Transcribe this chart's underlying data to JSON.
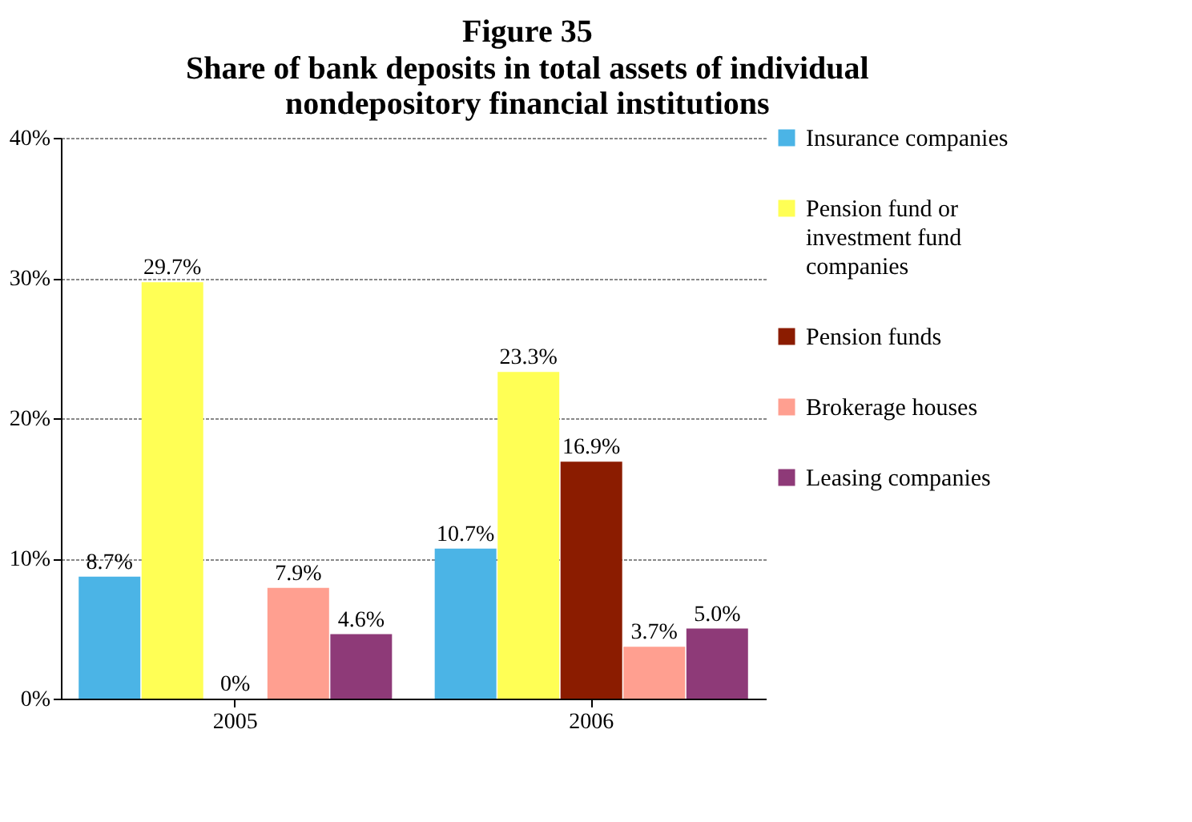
{
  "chart_data": {
    "type": "bar",
    "title": "Figure 35",
    "subtitle": "Share of bank deposits in total assets of individual nondepository financial institutions",
    "categories": [
      "2005",
      "2006"
    ],
    "series": [
      {
        "name": "Insurance companies",
        "color": "#4bb4e6",
        "values": [
          8.7,
          10.7
        ],
        "value_labels": [
          "8.7%",
          "10.7%"
        ]
      },
      {
        "name": "Pension fund or investment fund companies",
        "color": "#ffff55",
        "values": [
          29.7,
          23.3
        ],
        "value_labels": [
          "29.7%",
          "23.3%"
        ]
      },
      {
        "name": "Pension funds",
        "color": "#8b1c00",
        "values": [
          0,
          16.9
        ],
        "value_labels": [
          "0%",
          "16.9%"
        ]
      },
      {
        "name": "Brokerage houses",
        "color": "#ff9f90",
        "values": [
          7.9,
          3.7
        ],
        "value_labels": [
          "7.9%",
          "3.7%"
        ]
      },
      {
        "name": "Leasing companies",
        "color": "#8e3a78",
        "values": [
          4.6,
          5.0
        ],
        "value_labels": [
          "4.6%",
          "5.0%"
        ]
      }
    ],
    "ylim": [
      0,
      40
    ],
    "yticks": [
      {
        "value": 0,
        "label": "0%"
      },
      {
        "value": 10,
        "label": "10%"
      },
      {
        "value": 20,
        "label": "20%"
      },
      {
        "value": 30,
        "label": "30%"
      },
      {
        "value": 40,
        "label": "40%"
      }
    ],
    "grid": "y",
    "legend": "right"
  }
}
